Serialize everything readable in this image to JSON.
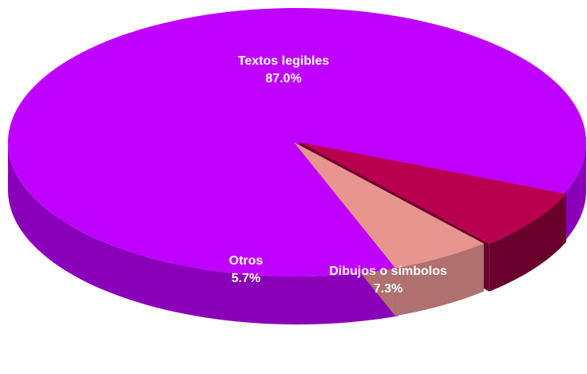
{
  "chart_data": {
    "type": "pie",
    "title": "",
    "legend": "none",
    "slices": [
      {
        "label": "Textos legibles",
        "percent_label": "87.0%",
        "value": 87.0,
        "color": "#c000ff",
        "side_color": "#8a00b8"
      },
      {
        "label": "Dibujos o símbolos",
        "percent_label": "7.3%",
        "value": 7.3,
        "color": "#b8004f",
        "side_color": "#6a002c"
      },
      {
        "label": "Otros",
        "percent_label": "5.7%",
        "value": 5.7,
        "color": "#e89590",
        "side_color": "#b07070"
      }
    ]
  }
}
